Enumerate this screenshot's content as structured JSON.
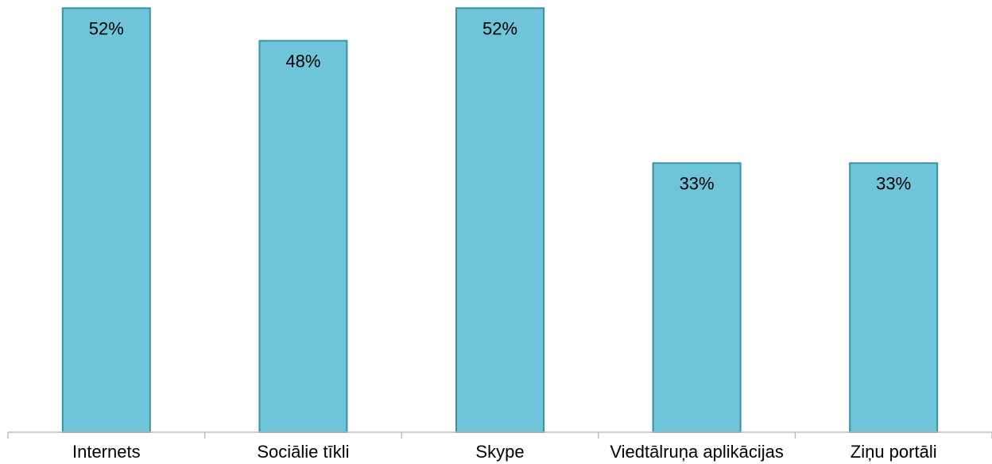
{
  "chart_data": {
    "type": "bar",
    "categories": [
      "Internets",
      "Sociālie tīkli",
      "Skype",
      "Viedtālruņa aplikācijas",
      "Ziņu portāli"
    ],
    "values": [
      52,
      48,
      52,
      33,
      33
    ],
    "value_labels": [
      "52%",
      "48%",
      "52%",
      "33%",
      "33%"
    ],
    "title": "",
    "xlabel": "",
    "ylabel": "",
    "ylim": [
      0,
      53
    ],
    "grid": false,
    "legend": "none",
    "colors": {
      "bar_fill": "#6ec4d8",
      "bar_border": "#3a90a4",
      "axis": "#bdbdbd"
    }
  }
}
